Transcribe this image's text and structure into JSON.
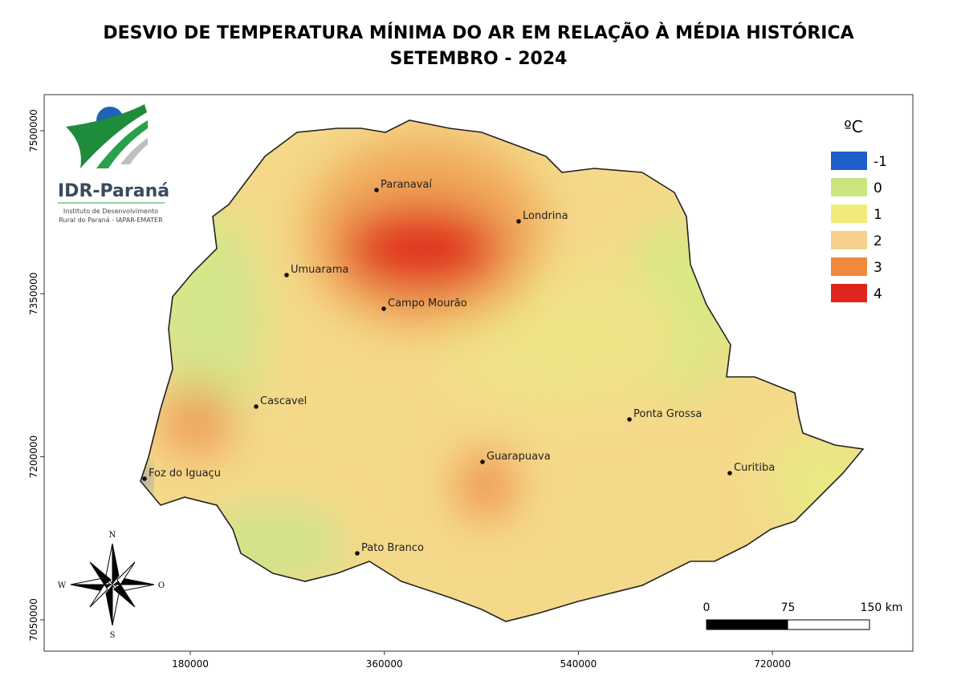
{
  "title": [
    "DESVIO DE TEMPERATURA MÍNIMA DO AR EM RELAÇÃO À MÉDIA HISTÓRICA",
    "SETEMBRO - 2024"
  ],
  "logo": {
    "name": "IDR-Paraná",
    "subtitle": [
      "Instituto de Desenvolvimento",
      "Rural do Paraná - IAPAR-EMATER"
    ]
  },
  "legend": {
    "title": "ºC",
    "items": [
      {
        "value": -1,
        "color": "#1f5fc8"
      },
      {
        "value": 0,
        "color": "#c9e67e"
      },
      {
        "value": 1,
        "color": "#f3ea7c"
      },
      {
        "value": 2,
        "color": "#f7cf8d"
      },
      {
        "value": 3,
        "color": "#ef8a3c"
      },
      {
        "value": 4,
        "color": "#e0261c"
      }
    ]
  },
  "cities": [
    "Paranavaí",
    "Londrina",
    "Umuarama",
    "Campo Mourão",
    "Cascavel",
    "Ponta Grossa",
    "Guarapuava",
    "Curitiba",
    "Foz do Iguaçu",
    "Pato Branco"
  ],
  "axes": {
    "xticks": [
      180000,
      360000,
      540000,
      720000
    ],
    "yticks": [
      7500000,
      7350000,
      7200000,
      7050000
    ]
  },
  "compass": {
    "north": "N",
    "south": "S",
    "west": "W",
    "east": "O"
  },
  "scale_bar": {
    "ticks": [
      0,
      75,
      {
        "value": 150,
        "label": "150 km"
      }
    ]
  }
}
